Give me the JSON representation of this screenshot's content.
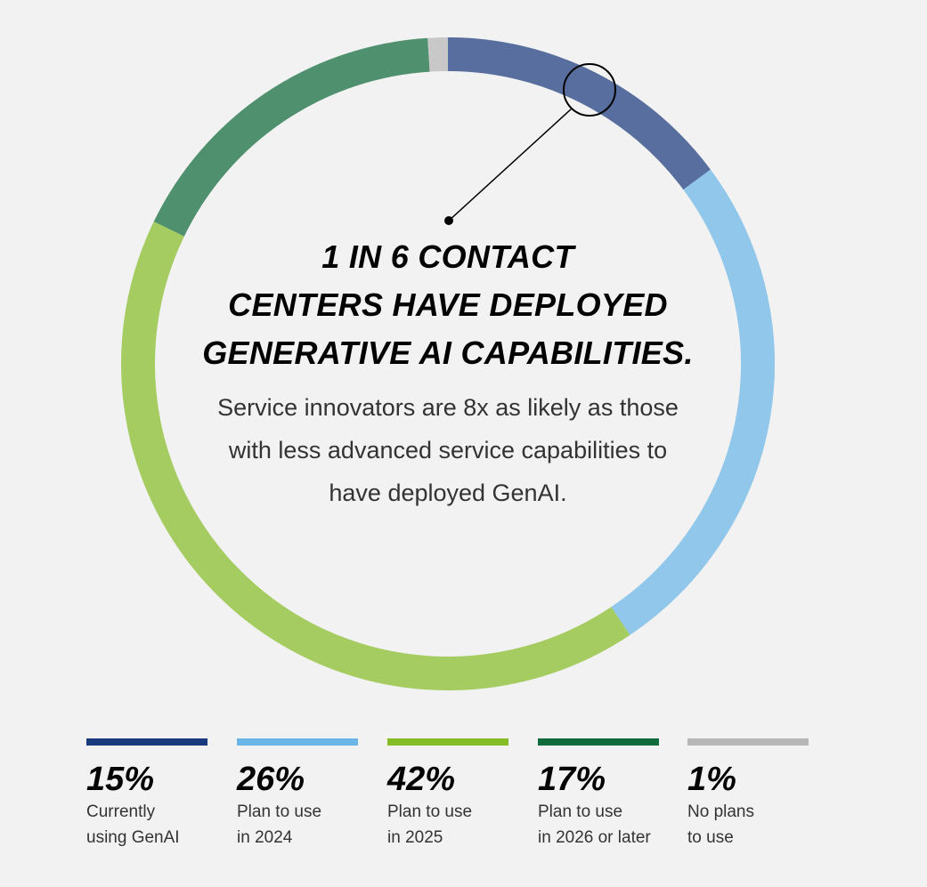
{
  "chart_data": {
    "type": "donut",
    "title": "1 IN 6 CONTACT\nCENTERS HAVE DEPLOYED\nGENERATIVE AI CAPABILITIES.",
    "subtitle": "Service innovators are 8x as likely as those\nwith less advanced service capabilities to\nhave deployed GenAI.",
    "categories": [
      "Currently\nusing GenAI",
      "Plan to use\nin 2024",
      "Plan to use\nin 2025",
      "Plan to use\nin 2026 or later",
      "No plans\nto use"
    ],
    "values": [
      15,
      26,
      42,
      17,
      1
    ],
    "value_labels": [
      "15%",
      "26%",
      "42%",
      "17%",
      "1%"
    ],
    "colors": [
      "#1b3a7d",
      "#6ab6e6",
      "#86bd27",
      "#0f6b3b",
      "#b7b7b7"
    ]
  }
}
